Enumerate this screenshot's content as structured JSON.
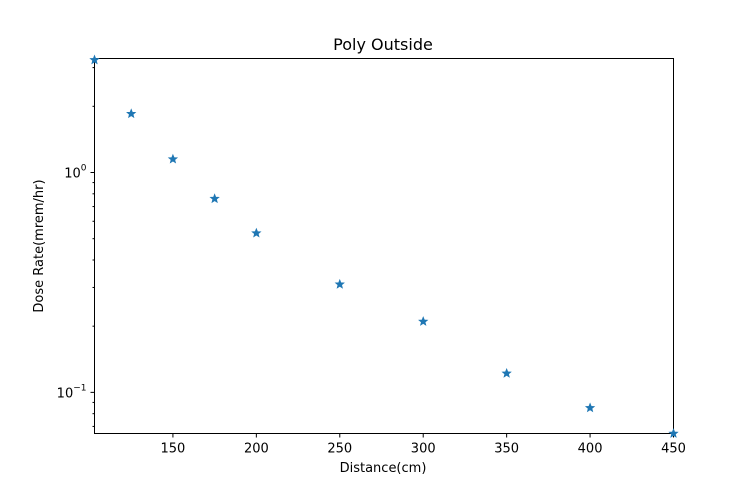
{
  "chart_data": {
    "type": "scatter",
    "title": "Poly Outside",
    "xlabel": "Distance(cm)",
    "ylabel": "Dose Rate(mrem/hr)",
    "xlim": [
      103,
      450
    ],
    "ylim": [
      0.065,
      3.3
    ],
    "yscale": "log",
    "grid": false,
    "marker": "star",
    "x_ticks": [
      150,
      200,
      250,
      300,
      350,
      400,
      450
    ],
    "x_tick_labels": [
      "150",
      "200",
      "250",
      "300",
      "350",
      "400",
      "450"
    ],
    "y_ticks": [
      {
        "value": 1,
        "base": "10",
        "exp": "0"
      },
      {
        "value": 0.1,
        "base": "10",
        "exp": "−1"
      }
    ],
    "x": [
      103,
      125,
      150,
      175,
      200,
      250,
      300,
      350,
      400,
      450
    ],
    "y": [
      3.25,
      1.85,
      1.15,
      0.76,
      0.53,
      0.31,
      0.21,
      0.122,
      0.085,
      0.065
    ],
    "colors": {
      "marker": "#1f77b4",
      "axes": "#000000"
    }
  }
}
